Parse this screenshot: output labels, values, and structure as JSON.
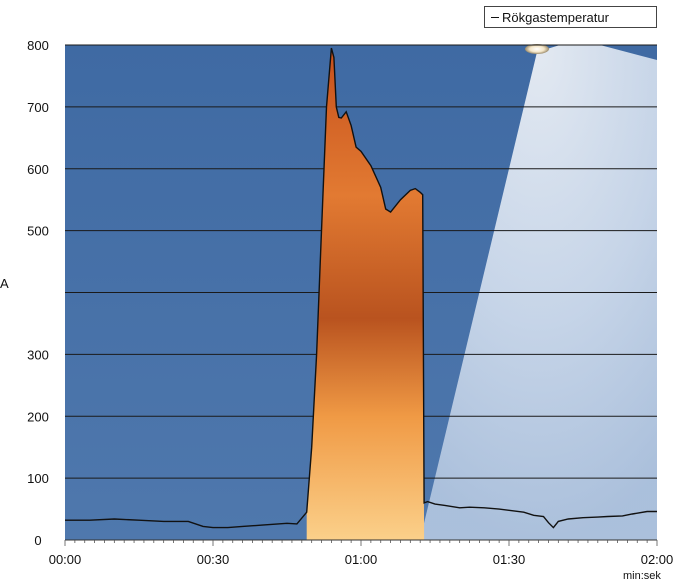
{
  "chart_data": {
    "type": "line",
    "xlabel": "min:sek",
    "ylabel": "",
    "xlim": [
      0,
      120
    ],
    "ylim": [
      0,
      800
    ],
    "grid": true,
    "legend_position": "top-right",
    "x_tick_labels": [
      "00:00",
      "00:30",
      "01:00",
      "01:30",
      "02:00"
    ],
    "y_tick_labels": [
      "800",
      "700",
      "600",
      "500",
      "",
      "300",
      "200",
      "100",
      "0"
    ],
    "series": [
      {
        "name": "Rökgastemperatur",
        "x": [
          0,
          5,
          10,
          15,
          20,
          25,
          28,
          30,
          33,
          36,
          40,
          45,
          47,
          49,
          50,
          51,
          52,
          53,
          54,
          54.5,
          55,
          55.5,
          56,
          57,
          58,
          59,
          60,
          62,
          64,
          65,
          66,
          68,
          70,
          71,
          72,
          72.5,
          72.8,
          73.5,
          75,
          77,
          80,
          82,
          85,
          88,
          90,
          93,
          95,
          97,
          98,
          99,
          100,
          102,
          105,
          108,
          110,
          113,
          115,
          118,
          120
        ],
        "y": [
          32,
          32,
          34,
          32,
          30,
          30,
          22,
          20,
          20,
          22,
          24,
          27,
          26,
          45,
          150,
          300,
          500,
          700,
          795,
          780,
          700,
          683,
          682,
          692,
          670,
          635,
          628,
          605,
          570,
          535,
          530,
          550,
          565,
          568,
          562,
          558,
          60,
          62,
          58,
          56,
          52,
          53,
          52,
          50,
          48,
          45,
          40,
          38,
          28,
          20,
          30,
          34,
          36,
          37,
          38,
          39,
          42,
          46,
          46
        ]
      }
    ]
  }
}
